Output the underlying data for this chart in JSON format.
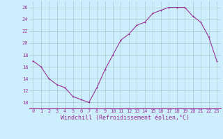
{
  "x": [
    0,
    1,
    2,
    3,
    4,
    5,
    6,
    7,
    8,
    9,
    10,
    11,
    12,
    13,
    14,
    15,
    16,
    17,
    18,
    19,
    20,
    21,
    22,
    23
  ],
  "y": [
    17.0,
    16.0,
    14.0,
    13.0,
    12.5,
    11.0,
    10.5,
    10.0,
    12.5,
    15.5,
    18.0,
    20.5,
    21.5,
    23.0,
    23.5,
    25.0,
    25.5,
    26.0,
    26.0,
    26.0,
    24.5,
    23.5,
    21.0,
    17.0
  ],
  "line_color": "#993399",
  "marker_color": "#993399",
  "bg_color": "#cceeff",
  "grid_color": "#aacccc",
  "xlabel": "Windchill (Refroidissement éolien,°C)",
  "xlabel_color": "#993399",
  "ylim": [
    9,
    27
  ],
  "xlim": [
    -0.5,
    23.5
  ],
  "yticks": [
    10,
    12,
    14,
    16,
    18,
    20,
    22,
    24,
    26
  ],
  "xticks": [
    0,
    1,
    2,
    3,
    4,
    5,
    6,
    7,
    8,
    9,
    10,
    11,
    12,
    13,
    14,
    15,
    16,
    17,
    18,
    19,
    20,
    21,
    22,
    23
  ],
  "tick_color": "#993399",
  "tick_fontsize": 5.0,
  "xlabel_fontsize": 6.0,
  "line_width": 0.8,
  "marker_size": 2.0
}
